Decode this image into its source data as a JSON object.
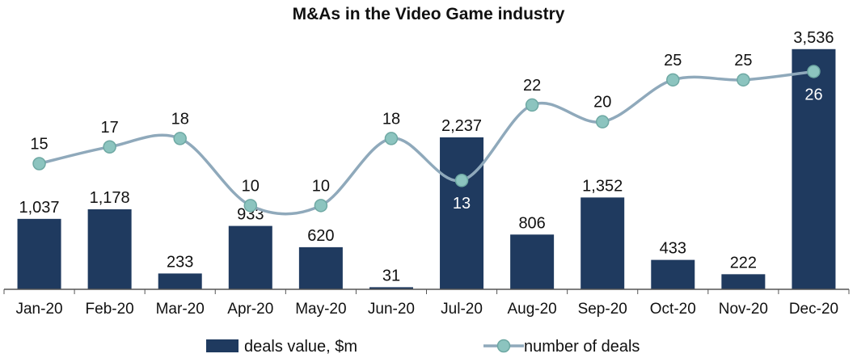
{
  "chart_data": {
    "type": "bar+line",
    "title": "M&As in the Video Game industry",
    "categories": [
      "Jan-20",
      "Feb-20",
      "Mar-20",
      "Apr-20",
      "May-20",
      "Jun-20",
      "Jul-20",
      "Aug-20",
      "Sep-20",
      "Oct-20",
      "Nov-20",
      "Dec-20"
    ],
    "series": [
      {
        "name": "deals value, $m",
        "type": "bar",
        "axis": "left",
        "values": [
          1037,
          1178,
          233,
          933,
          620,
          31,
          2237,
          806,
          1352,
          433,
          222,
          3536
        ],
        "labels": [
          "1,037",
          "1,178",
          "233",
          "933",
          "620",
          "31",
          "2,237",
          "806",
          "1,352",
          "433",
          "222",
          "3,536"
        ]
      },
      {
        "name": "number of deals",
        "type": "line",
        "axis": "right",
        "values": [
          15,
          17,
          18,
          10,
          10,
          18,
          13,
          22,
          20,
          25,
          25,
          26
        ],
        "labels": [
          "15",
          "17",
          "18",
          "10",
          "10",
          "18",
          "13",
          "22",
          "20",
          "25",
          "25",
          "26"
        ]
      }
    ],
    "ylim_left": [
      0,
      3700
    ],
    "ylim_right": [
      0,
      30
    ],
    "legend_position": "bottom",
    "colors": {
      "bar": "#1f3a5f",
      "line": "#8fa9bb",
      "marker": "#8cc4bf",
      "marker_edge": "#6ea8a3",
      "axis": "#555555"
    }
  }
}
